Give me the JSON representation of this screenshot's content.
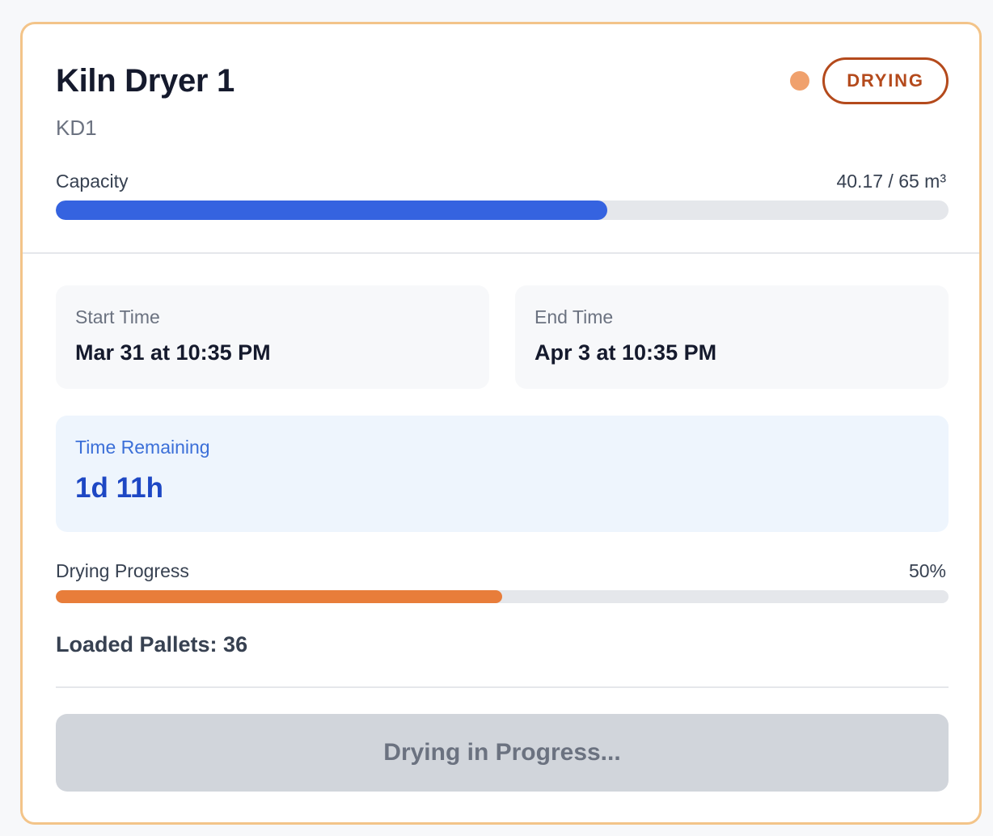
{
  "dryer": {
    "name": "Kiln Dryer 1",
    "code": "KD1",
    "status": {
      "label": "DRYING",
      "dot_color": "#f0a16d",
      "badge_color": "#b44a1c"
    }
  },
  "capacity": {
    "label": "Capacity",
    "value_text": "40.17 / 65 m³",
    "used": 40.17,
    "total": 65,
    "bar_color": "#3563e0"
  },
  "times": {
    "start": {
      "label": "Start Time",
      "value": "Mar 31 at 10:35 PM"
    },
    "end": {
      "label": "End Time",
      "value": "Apr 3 at 10:35 PM"
    }
  },
  "remaining": {
    "label": "Time Remaining",
    "value": "1d 11h"
  },
  "progress": {
    "label": "Drying Progress",
    "value_text": "50%",
    "fraction": 0.5,
    "bar_color": "#e87d3a"
  },
  "pallets": {
    "text": "Loaded Pallets: 36"
  },
  "action": {
    "label": "Drying in Progress..."
  }
}
